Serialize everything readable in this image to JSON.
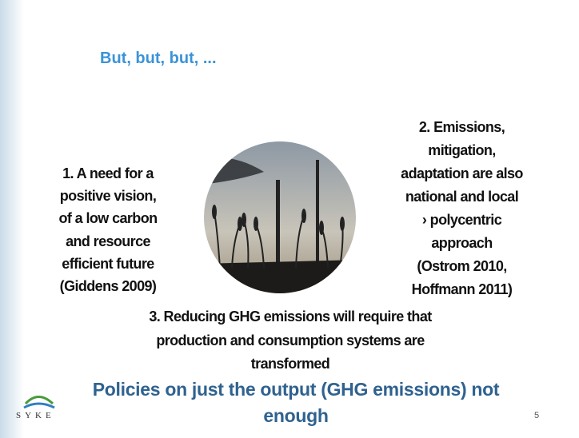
{
  "slide": {
    "title": "But, but, but, ...",
    "point_1": [
      "1. A need for a",
      "positive vision,",
      "of a low carbon",
      "and resource",
      "efficient future",
      "(Giddens 2009)"
    ],
    "point_2": [
      "2. Emissions,",
      "mitigation,",
      "adaptation are also",
      "national and local",
      "› polycentric",
      "approach",
      "(Ostrom 2010,",
      "Hoffmann 2011)"
    ],
    "point_3": [
      "3. Reducing GHG emissions will require that",
      "production and consumption systems are",
      "transformed"
    ],
    "conclusion": [
      "Policies on just the output (GHG emissions) not",
      "enough"
    ],
    "logo": "SYKE",
    "page_number": "5"
  }
}
